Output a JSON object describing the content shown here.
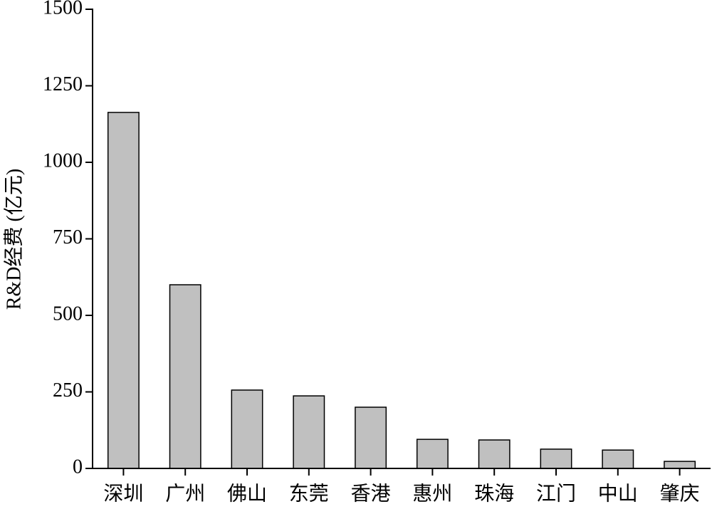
{
  "chart_data": {
    "type": "bar",
    "y_label": "R&D经费 (亿元)",
    "categories": [
      "深圳",
      "广州",
      "佛山",
      "东莞",
      "香港",
      "惠州",
      "珠海",
      "江门",
      "中山",
      "肇庆"
    ],
    "values": [
      1163,
      600,
      256,
      237,
      200,
      95,
      93,
      63,
      60,
      23
    ],
    "color": "#c0c0c0",
    "ylim": [
      0,
      1500
    ],
    "yticks": [
      0,
      250,
      500,
      750,
      1000,
      1250,
      1500
    ],
    "grid": false
  }
}
